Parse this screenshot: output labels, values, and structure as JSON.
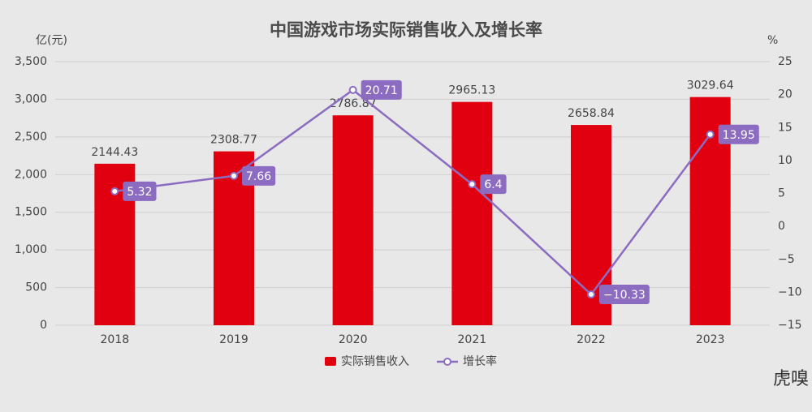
{
  "chart_data": {
    "type": "combo",
    "title": "中国游戏市场实际销售收入及增长率",
    "y_label": "亿(元)",
    "y2_label": "%",
    "categories": [
      "2018",
      "2019",
      "2020",
      "2021",
      "2022",
      "2023"
    ],
    "series": [
      {
        "name": "实际销售收入",
        "type": "bar",
        "color": "#e0000f",
        "values": [
          2144.43,
          2308.77,
          2786.87,
          2965.13,
          2658.84,
          3029.64
        ]
      },
      {
        "name": "增长率",
        "type": "line",
        "axis": "y2",
        "color": "#8c6cc0",
        "values": [
          5.32,
          7.66,
          20.71,
          6.4,
          -10.33,
          13.95
        ],
        "value_labels": [
          "5.32",
          "7.66",
          "20.71",
          "6.4",
          "−10.33",
          "13.95"
        ]
      }
    ],
    "ylim": [
      0,
      3500
    ],
    "yticks": [
      0,
      500,
      {
        "value": 1000,
        "label": "1,000"
      },
      {
        "value": 1500,
        "label": "1,500"
      },
      {
        "value": 2000,
        "label": "2,000"
      },
      {
        "value": 2500,
        "label": "2,500"
      },
      {
        "value": 3000,
        "label": "3,000"
      },
      {
        "value": 3500,
        "label": "3,500"
      }
    ],
    "y2lim": [
      -15,
      25
    ],
    "y2ticks": [
      {
        "value": -15,
        "label": "−15"
      },
      {
        "value": -10,
        "label": "−10"
      },
      {
        "value": -5,
        "label": "−5"
      },
      0,
      5,
      10,
      15,
      20,
      25
    ],
    "grid": true,
    "legend": "bottom",
    "watermark": "虎嗅"
  }
}
